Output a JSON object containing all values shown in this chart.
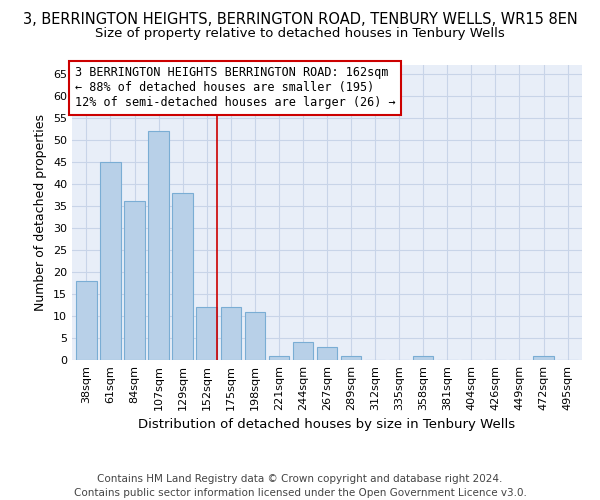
{
  "title": "3, BERRINGTON HEIGHTS, BERRINGTON ROAD, TENBURY WELLS, WR15 8EN",
  "subtitle": "Size of property relative to detached houses in Tenbury Wells",
  "xlabel": "Distribution of detached houses by size in Tenbury Wells",
  "ylabel": "Number of detached properties",
  "footer_line1": "Contains HM Land Registry data © Crown copyright and database right 2024.",
  "footer_line2": "Contains public sector information licensed under the Open Government Licence v3.0.",
  "categories": [
    "38sqm",
    "61sqm",
    "84sqm",
    "107sqm",
    "129sqm",
    "152sqm",
    "175sqm",
    "198sqm",
    "221sqm",
    "244sqm",
    "267sqm",
    "289sqm",
    "312sqm",
    "335sqm",
    "358sqm",
    "381sqm",
    "404sqm",
    "426sqm",
    "449sqm",
    "472sqm",
    "495sqm"
  ],
  "values": [
    18,
    45,
    36,
    52,
    38,
    12,
    12,
    11,
    1,
    4,
    3,
    1,
    0,
    0,
    1,
    0,
    0,
    0,
    0,
    1,
    0
  ],
  "bar_color": "#b8d0e8",
  "bar_edge_color": "#7aadd4",
  "vline_index": 5,
  "vline_color": "#cc0000",
  "annotation_box_text": "3 BERRINGTON HEIGHTS BERRINGTON ROAD: 162sqm\n← 88% of detached houses are smaller (195)\n12% of semi-detached houses are larger (26) →",
  "annotation_box_color": "#ffffff",
  "annotation_box_edge_color": "#cc0000",
  "annotation_text_fontsize": 8.5,
  "ylim": [
    0,
    67
  ],
  "yticks": [
    0,
    5,
    10,
    15,
    20,
    25,
    30,
    35,
    40,
    45,
    50,
    55,
    60,
    65
  ],
  "grid_color": "#c8d4e8",
  "background_color": "#e8eef8",
  "title_fontsize": 10.5,
  "subtitle_fontsize": 9.5,
  "xlabel_fontsize": 9.5,
  "ylabel_fontsize": 9,
  "tick_fontsize": 8,
  "footer_fontsize": 7.5
}
